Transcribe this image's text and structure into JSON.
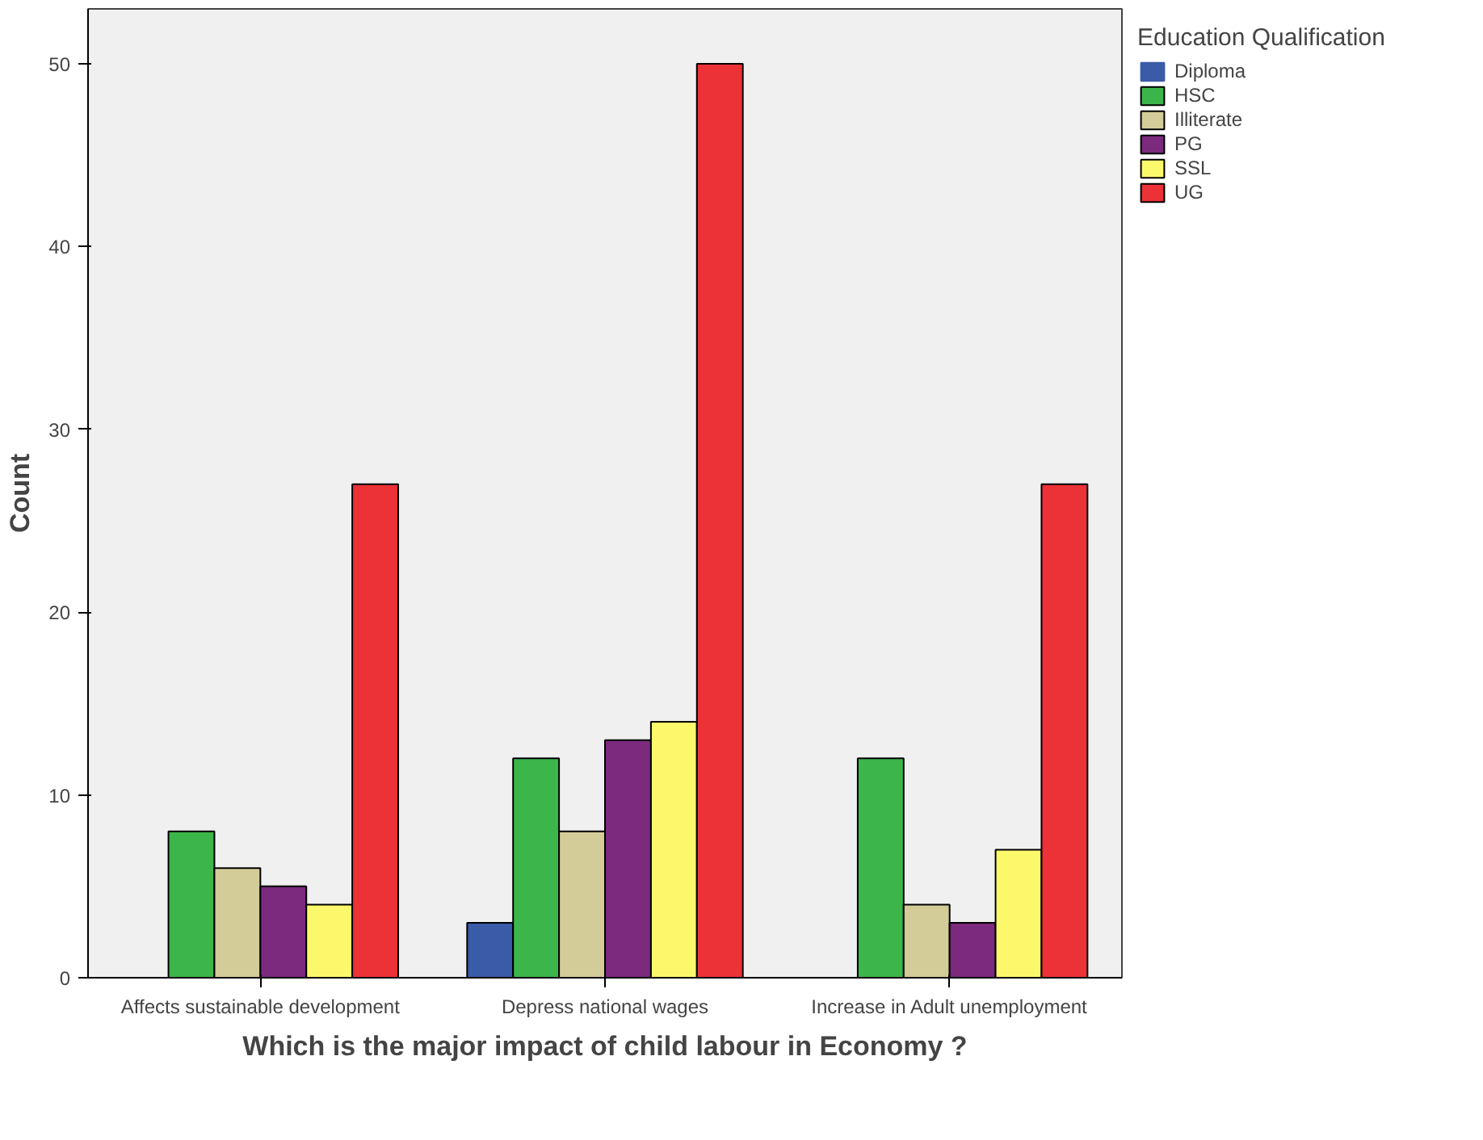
{
  "chart_data": {
    "type": "bar",
    "xlabel": "Which is the major impact of child labour in Economy ?",
    "ylabel": "Count",
    "legend_title": "Education Qualification",
    "categories": [
      "Affects sustainable development",
      "Depress national wages",
      "Increase in Adult unemployment"
    ],
    "series": [
      {
        "name": "Diploma",
        "color": "#3a5ba8",
        "values": [
          0,
          3,
          0
        ]
      },
      {
        "name": "HSC",
        "color": "#3cb64a",
        "values": [
          8,
          12,
          12
        ]
      },
      {
        "name": "Illiterate",
        "color": "#d4cc98",
        "values": [
          6,
          8,
          4
        ]
      },
      {
        "name": "PG",
        "color": "#7b2a7e",
        "values": [
          5,
          13,
          3
        ]
      },
      {
        "name": "SSL",
        "color": "#fbf86c",
        "values": [
          4,
          14,
          7
        ]
      },
      {
        "name": "UG",
        "color": "#ec3237",
        "values": [
          27,
          50,
          27
        ]
      }
    ],
    "ylim": [
      0,
      53
    ],
    "yticks": [
      0,
      10,
      20,
      30,
      40,
      50
    ],
    "grid": false,
    "legend": "top right"
  }
}
